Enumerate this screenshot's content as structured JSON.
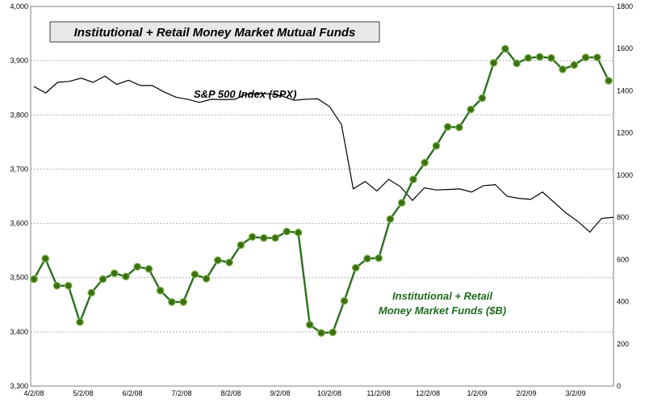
{
  "chart_data": {
    "type": "line",
    "title": "Institutional + Retail Money Market Mutual Funds",
    "x_labels": [
      "4/2/08",
      "5/2/08",
      "6/2/08",
      "7/2/08",
      "8/2/08",
      "9/2/08",
      "10/2/08",
      "11/2/08",
      "12/2/08",
      "1/2/09",
      "2/2/09",
      "3/2/09"
    ],
    "left_axis": {
      "min": 3300,
      "max": 4000,
      "ticks": [
        "3,300",
        "3,400",
        "3,500",
        "3,600",
        "3,700",
        "3,800",
        "3,900",
        "4,000"
      ]
    },
    "right_axis": {
      "min": 0,
      "max": 1800,
      "ticks": [
        "0",
        "200",
        "400",
        "600",
        "800",
        "1000",
        "1200",
        "1400",
        "1600",
        "1800"
      ]
    },
    "grid": true,
    "series": [
      {
        "name": "S&P 500 Index (SPX)",
        "axis": "right",
        "color": "#000000",
        "values": [
          1420,
          1390,
          1440,
          1445,
          1460,
          1440,
          1470,
          1430,
          1450,
          1425,
          1425,
          1395,
          1370,
          1360,
          1345,
          1360,
          1358,
          1360,
          1385,
          1388,
          1385,
          1375,
          1355,
          1360,
          1362,
          1325,
          1240,
          935,
          970,
          925,
          980,
          945,
          880,
          940,
          930,
          932,
          935,
          920,
          950,
          955,
          900,
          890,
          885,
          920,
          870,
          820,
          780,
          730,
          795,
          800
        ],
        "label": "S&P 500 Index (SPX)"
      },
      {
        "name": "Institutional + Retail Money Market Funds ($B)",
        "axis": "left",
        "color": "#2a6e1e",
        "marker_color": "#3c6e12",
        "values": [
          3497,
          3535,
          3485,
          3485,
          3418,
          3472,
          3497,
          3508,
          3502,
          3520,
          3516,
          3476,
          3455,
          3455,
          3506,
          3498,
          3532,
          3528,
          3560,
          3575,
          3573,
          3573,
          3585,
          3583,
          3413,
          3398,
          3399,
          3457,
          3518,
          3535,
          3536,
          3608,
          3638,
          3681,
          3712,
          3743,
          3778,
          3777,
          3810,
          3831,
          3896,
          3922,
          3895,
          3905,
          3907,
          3905,
          3884,
          3892,
          3906,
          3906,
          3863
        ],
        "label_line1": "Institutional + Retail",
        "label_line2": "Money Market Funds  ($B)"
      }
    ]
  }
}
